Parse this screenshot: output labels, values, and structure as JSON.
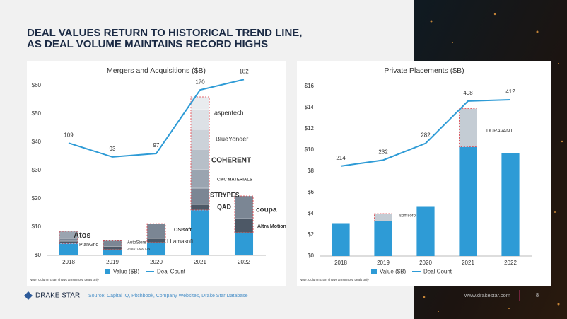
{
  "header": {
    "title_lines": [
      "DEAL VALUES RETURN TO HISTORICAL TREND LINE,",
      "AS DEAL VOLUME MAINTAINS RECORD HIGHS"
    ]
  },
  "chart_data": [
    {
      "type": "bar",
      "title": "Mergers and Acquisitions ($B)",
      "categories": [
        "2018",
        "2019",
        "2020",
        "2021",
        "2022"
      ],
      "series": [
        {
          "name": "Value ($B)",
          "color": "#2e9bd6",
          "values": [
            4.2,
            2,
            4.5,
            16,
            8
          ]
        },
        {
          "name": "Deal Count",
          "color": "#2e9bd6",
          "type": "line",
          "axis": "y2",
          "values": [
            109,
            93,
            97,
            170,
            182
          ]
        }
      ],
      "highlighted_segments": [
        [
          0.8,
          1.0,
          2.5
        ],
        [
          1.2,
          2.0
        ],
        [
          1.5,
          5.2
        ],
        [
          2,
          5.75,
          6.5,
          7.25,
          7,
          7,
          4.5
        ],
        [
          5,
          8
        ]
      ],
      "segment_colors": [
        "#4d5866",
        "#7b8694",
        "#9aa4b0",
        "#b7bfc8",
        "#ccd2d9",
        "#dde1e6",
        "#e9ecef"
      ],
      "segment_outline": "#e0373f",
      "ylim": [
        0,
        60
      ],
      "yticks": [
        {
          "value": 0,
          "label": "$0"
        },
        {
          "value": 10,
          "label": "$10"
        },
        {
          "value": 20,
          "label": "$20"
        },
        {
          "value": 30,
          "label": "$30"
        },
        {
          "value": 40,
          "label": "$40"
        },
        {
          "value": 50,
          "label": "$50"
        },
        {
          "value": 60,
          "label": "$60"
        }
      ],
      "y2lim": [
        -20,
        175
      ],
      "logos": [
        "Atos",
        "PlanGrid",
        "AutoStore",
        "JR AUTOMATION",
        "OSIsoft",
        "LLamasoft",
        "aspentech",
        "BlueYonder",
        "COHERENT",
        "CMC MATERIALS",
        "STRYPES",
        "QAD",
        "coupa",
        "Altra Motion"
      ],
      "note": "Note: Column chart shows announced deals only"
    },
    {
      "type": "bar",
      "title": "Private Placements ($B)",
      "categories": [
        "2018",
        "2019",
        "2020",
        "2021",
        "2022"
      ],
      "series": [
        {
          "name": "Value ($B)",
          "color": "#2e9bd6",
          "values": [
            3.1,
            3.3,
            4.7,
            10.3,
            9.7
          ]
        },
        {
          "name": "Deal Count",
          "color": "#2e9bd6",
          "type": "line",
          "axis": "y2",
          "values": [
            214,
            232,
            282,
            408,
            412
          ]
        }
      ],
      "highlighted_segments": [
        [],
        [
          0.7
        ],
        [],
        [
          3.6
        ],
        []
      ],
      "segment_colors": [
        "#c4ccd4"
      ],
      "segment_outline": "#e0373f",
      "ylim": [
        0,
        16
      ],
      "yticks": [
        {
          "value": 0,
          "label": "$0"
        },
        {
          "value": 2,
          "label": "$2"
        },
        {
          "value": 4,
          "label": "$4"
        },
        {
          "value": 6,
          "label": "$6"
        },
        {
          "value": 8,
          "label": "$8"
        },
        {
          "value": 10,
          "label": "$10"
        },
        {
          "value": 12,
          "label": "$12"
        },
        {
          "value": 14,
          "label": "$14"
        },
        {
          "value": 16,
          "label": "$16"
        }
      ],
      "y2lim": [
        -54,
        452
      ],
      "logos": [
        "somsoro",
        "DURAVANT"
      ],
      "note": "Note: Column chart shows announced deals only"
    }
  ],
  "footer": {
    "brand": "DRAKE STAR",
    "source": "Source: Capital IQ, Pitchbook, Company Websites, Drake Star Database",
    "website": "www.drakestar.com",
    "page_number": "8"
  }
}
